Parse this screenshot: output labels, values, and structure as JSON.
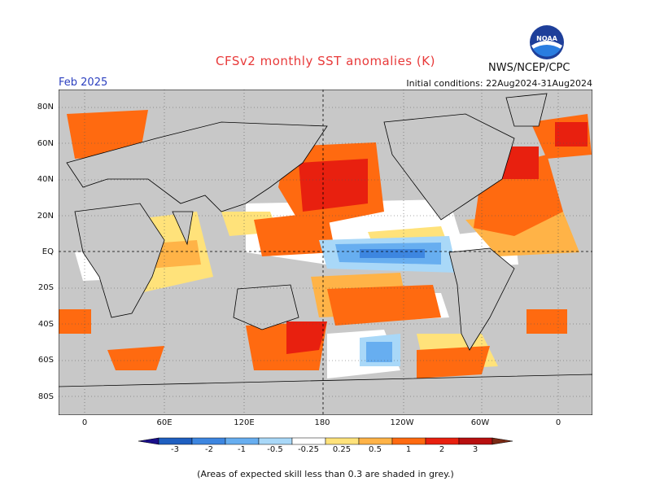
{
  "header": {
    "title": "CFSv2 monthly SST anomalies (K)",
    "agency": "NWS/NCEP/CPC",
    "forecast_month": "Feb 2025",
    "initial_conditions": "Initial conditions: 22Aug2024-31Aug2024"
  },
  "map": {
    "lat_labels": [
      "80N",
      "60N",
      "40N",
      "20N",
      "EQ",
      "20S",
      "40S",
      "60S",
      "80S"
    ],
    "lon_labels": [
      "0",
      "60E",
      "120E",
      "180",
      "120W",
      "60W",
      "0"
    ],
    "grey_meaning": "low skill"
  },
  "legend": {
    "tick_labels": [
      "-3",
      "-2",
      "-1",
      "-0.5",
      "-0.25",
      "0.25",
      "0.5",
      "1",
      "2",
      "3"
    ],
    "colors": [
      "#1a0f8a",
      "#1f5fc0",
      "#3d86e0",
      "#67aef0",
      "#a9d8f8",
      "#ffffff",
      "#ffe27a",
      "#ffb347",
      "#ff6a10",
      "#e8200f",
      "#b80f0f",
      "#7a2a15"
    ]
  },
  "footnote": "(Areas of expected skill less than 0.3 are shaded in grey.)"
}
